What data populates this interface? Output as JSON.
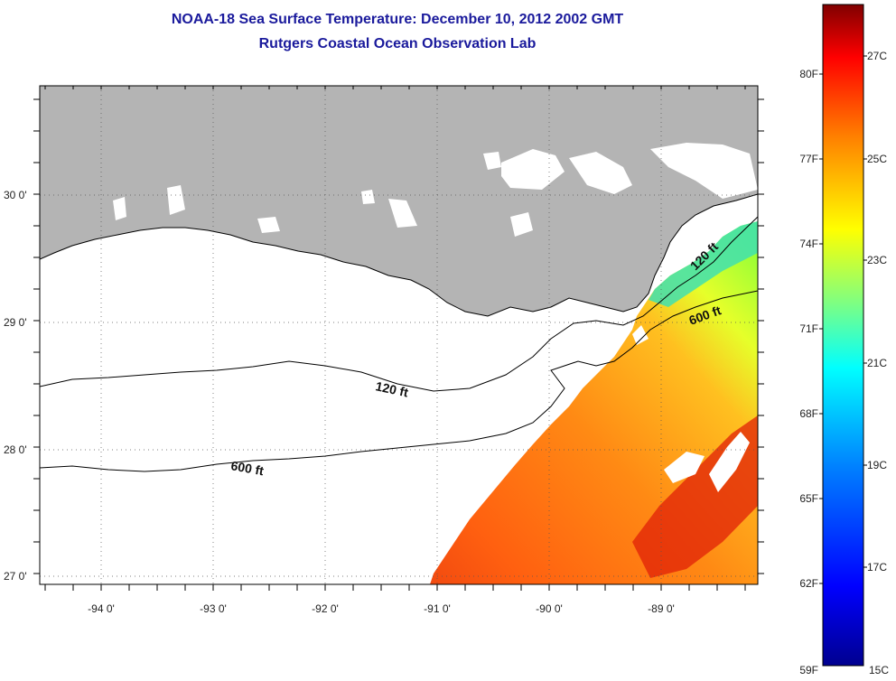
{
  "header": {
    "title": "NOAA-18 Sea Surface Temperature:  December 10, 2012 2002 GMT",
    "subtitle": "Rutgers Coastal Ocean Observation Lab"
  },
  "map": {
    "latitude_labels": [
      "30 0'",
      "29 0'",
      "28 0'",
      "27 0'"
    ],
    "longitude_labels": [
      "-94 0'",
      "-93 0'",
      "-92 0'",
      "-91 0'",
      "-90 0'",
      "-89 0'"
    ],
    "contour_labels": {
      "shelf_120_west": "120 ft",
      "shelf_120_east": "120 ft",
      "shelf_600_west": "600 ft",
      "shelf_600_east": "600 ft"
    },
    "colors": {
      "land": "#b4b4b4",
      "no_data": "#ffffff",
      "coastline": "#000000"
    }
  },
  "colorbar": {
    "fahrenheit_labels": [
      "80F",
      "77F",
      "74F",
      "71F",
      "68F",
      "65F",
      "62F",
      "59F"
    ],
    "celsius_labels": [
      "27C",
      "25C",
      "23C",
      "21C",
      "19C",
      "17C",
      "15C"
    ],
    "colors": [
      "#00008f",
      "#0000ff",
      "#0080ff",
      "#00ffff",
      "#80ff80",
      "#ffff00",
      "#ff8000",
      "#ff0000",
      "#800000"
    ]
  }
}
